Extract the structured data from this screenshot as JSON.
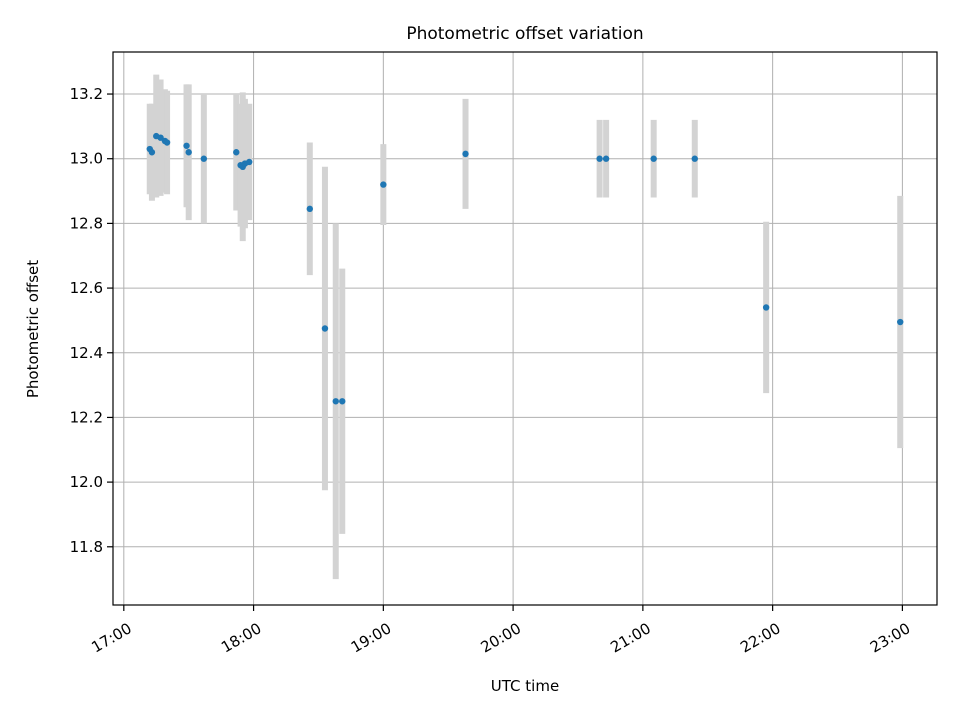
{
  "chart_data": {
    "type": "scatter",
    "title": "Photometric offset variation",
    "xlabel": "UTC time",
    "ylabel": "Photometric offset",
    "xlim": [
      "16:55",
      "23:16"
    ],
    "ylim": [
      11.62,
      13.33
    ],
    "x_ticks": [
      "17:00",
      "18:00",
      "19:00",
      "20:00",
      "21:00",
      "22:00",
      "23:00"
    ],
    "y_ticks": [
      "11.8",
      "12.0",
      "12.2",
      "12.4",
      "12.6",
      "12.8",
      "13.0",
      "13.2"
    ],
    "grid": true,
    "colors": {
      "point": "#1f77b4",
      "errorbar": "#d3d3d3",
      "grid": "#b0b0b0"
    },
    "points": [
      {
        "x": "17:12",
        "y": 13.03,
        "err": 0.14
      },
      {
        "x": "17:13",
        "y": 13.02,
        "err": 0.15
      },
      {
        "x": "17:15",
        "y": 13.07,
        "err": 0.19
      },
      {
        "x": "17:17",
        "y": 13.065,
        "err": 0.18
      },
      {
        "x": "17:19",
        "y": 13.055,
        "err": 0.16
      },
      {
        "x": "17:20",
        "y": 13.05,
        "err": 0.16
      },
      {
        "x": "17:29",
        "y": 13.04,
        "err": 0.19
      },
      {
        "x": "17:30",
        "y": 13.02,
        "err": 0.21
      },
      {
        "x": "17:37",
        "y": 13.0,
        "err": 0.2
      },
      {
        "x": "17:52",
        "y": 13.02,
        "err": 0.18
      },
      {
        "x": "17:54",
        "y": 12.98,
        "err": 0.19
      },
      {
        "x": "17:55",
        "y": 12.975,
        "err": 0.23
      },
      {
        "x": "17:56",
        "y": 12.985,
        "err": 0.2
      },
      {
        "x": "17:58",
        "y": 12.99,
        "err": 0.18
      },
      {
        "x": "18:26",
        "y": 12.845,
        "err": 0.205
      },
      {
        "x": "18:33",
        "y": 12.475,
        "err": 0.5
      },
      {
        "x": "18:38",
        "y": 12.25,
        "err": 0.55
      },
      {
        "x": "18:41",
        "y": 12.25,
        "err": 0.41
      },
      {
        "x": "19:00",
        "y": 12.92,
        "err": 0.125
      },
      {
        "x": "19:38",
        "y": 13.015,
        "err": 0.17
      },
      {
        "x": "20:40",
        "y": 13.0,
        "err": 0.12
      },
      {
        "x": "20:43",
        "y": 13.0,
        "err": 0.12
      },
      {
        "x": "21:05",
        "y": 13.0,
        "err": 0.12
      },
      {
        "x": "21:24",
        "y": 13.0,
        "err": 0.12
      },
      {
        "x": "21:57",
        "y": 12.54,
        "err": 0.265
      },
      {
        "x": "22:59",
        "y": 12.495,
        "err": 0.39
      }
    ]
  }
}
